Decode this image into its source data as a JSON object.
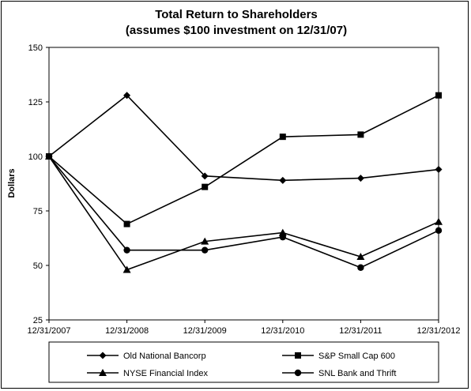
{
  "chart_data": {
    "type": "line",
    "title": "Total Return to Shareholders",
    "subtitle": "(assumes $100 investment on 12/31/07)",
    "xlabel": "",
    "ylabel": "Dollars",
    "ylim": [
      25,
      150
    ],
    "yticks": [
      25,
      50,
      75,
      100,
      125,
      150
    ],
    "categories": [
      "12/31/2007",
      "12/31/2008",
      "12/31/2009",
      "12/31/2010",
      "12/31/2011",
      "12/31/2012"
    ],
    "grid": false,
    "legend_position": "bottom",
    "series": [
      {
        "name": "Old National Bancorp",
        "marker": "diamond",
        "values": [
          100,
          128,
          91,
          89,
          90,
          94
        ]
      },
      {
        "name": "S&P Small Cap 600",
        "marker": "square",
        "values": [
          100,
          69,
          86,
          109,
          110,
          128
        ]
      },
      {
        "name": "NYSE Financial Index",
        "marker": "triangle",
        "values": [
          100,
          48,
          61,
          65,
          54,
          70
        ]
      },
      {
        "name": "SNL Bank and Thrift",
        "marker": "circle",
        "values": [
          100,
          57,
          57,
          63,
          49,
          66
        ]
      }
    ]
  }
}
